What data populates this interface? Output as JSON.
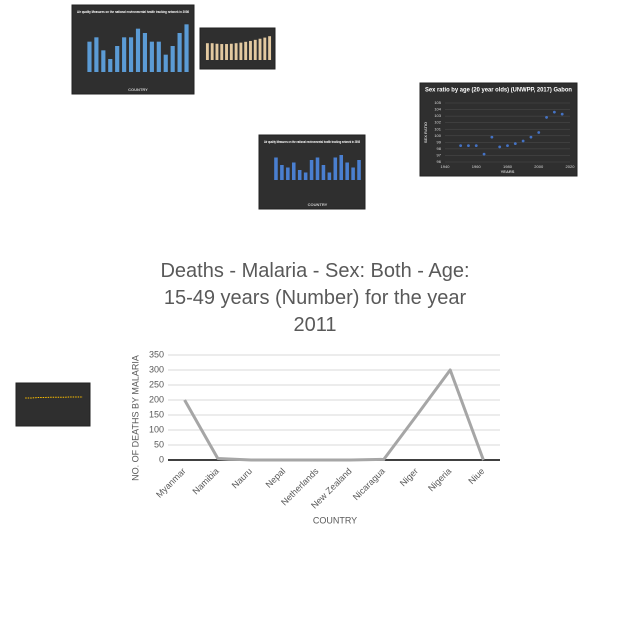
{
  "chart_data": [
    {
      "type": "bar",
      "title": "Air quality Measures on the national environmental health tracking network in 2008",
      "x_label": "COUNTRY",
      "color": "#5b9bd5",
      "values": [
        0.7,
        0.8,
        0.5,
        0.3,
        0.6,
        0.8,
        0.8,
        1.0,
        0.9,
        0.7,
        0.7,
        0.4,
        0.6,
        0.9,
        1.1
      ],
      "ylim": [
        0,
        1.2
      ]
    },
    {
      "type": "bar",
      "color": "#e3c9a0",
      "values": [
        0.6,
        0.6,
        0.58,
        0.57,
        0.57,
        0.58,
        0.6,
        0.62,
        0.65,
        0.68,
        0.72,
        0.76,
        0.8,
        0.85
      ],
      "ylim": [
        0,
        1
      ]
    },
    {
      "type": "scatter",
      "title": "Sex ratio by age (20 year olds) (UNWPP, 2017) Gabon",
      "x_label": "YEARS",
      "y_label": "SEX RATIO",
      "color": "#4472c4",
      "x": [
        1950,
        1955,
        1960,
        1965,
        1970,
        1975,
        1980,
        1985,
        1990,
        1995,
        2000,
        2005,
        2010,
        2015
      ],
      "values": [
        98.5,
        98.5,
        98.5,
        97.2,
        99.8,
        98.3,
        98.5,
        98.8,
        99.2,
        99.8,
        100.5,
        102.8,
        103.6,
        103.3
      ],
      "xlim": [
        1940,
        2020
      ],
      "xticks": [
        1940,
        1960,
        1980,
        2000,
        2020
      ],
      "ylim": [
        96,
        105
      ],
      "yticks": [
        96,
        97,
        98,
        99,
        100,
        101,
        102,
        103,
        104,
        105
      ]
    },
    {
      "type": "bar",
      "title": "Air quality Measures on the national environmental health tracking network in 2008",
      "x_label": "COUNTRY",
      "color": "#4a7fd0",
      "values": [
        0.9,
        0.6,
        0.5,
        0.7,
        0.4,
        0.3,
        0.8,
        0.9,
        0.6,
        0.3,
        0.9,
        1.0,
        0.7,
        0.5,
        0.8
      ],
      "ylim": [
        0,
        1.2
      ]
    },
    {
      "type": "line",
      "color": "#ffc000",
      "values": [
        0.8,
        0.8,
        0.82,
        0.82,
        0.83,
        0.83,
        0.83,
        0.84,
        0.84,
        0.84
      ],
      "ylim": [
        0,
        1.2
      ]
    },
    {
      "type": "line",
      "title": "Deaths - Malaria - Sex: Both - Age: 15-49 years (Number) for the year 2011",
      "x_label": "COUNTRY",
      "y_label": "NO. OF DEATHS BY MALARIA",
      "color": "#a6a6a6",
      "categories": [
        "Myanmar",
        "Namibia",
        "Nauru",
        "Nepal",
        "Netherlands",
        "New Zealand",
        "Nicaragua",
        "Niger",
        "Nigeria",
        "Niue"
      ],
      "values": [
        200,
        5,
        0,
        0,
        0,
        0,
        2,
        150,
        300,
        0
      ],
      "ylim": [
        0,
        350
      ],
      "yticks": [
        0,
        50,
        100,
        150,
        200,
        250,
        300,
        350
      ],
      "grid": true
    }
  ]
}
